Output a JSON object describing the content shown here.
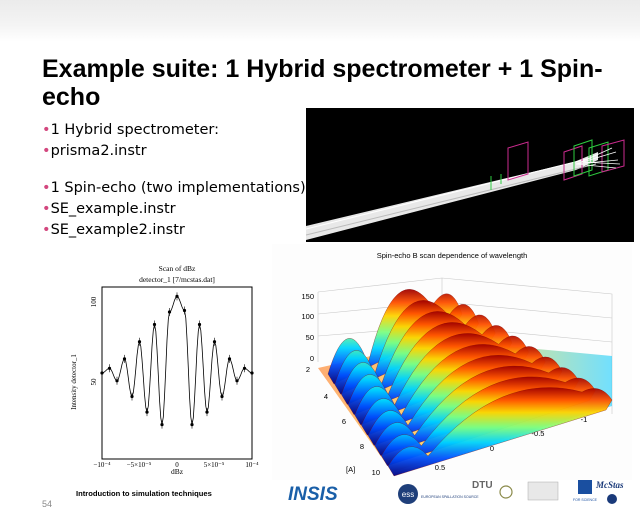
{
  "slide": {
    "title": "Example suite: 1 Hybrid spectrometer + 1 Spin-echo",
    "bullet_marker": "•",
    "bullets": [
      "1 Hybrid spectrometer:",
      "prisma2.instr",
      "1 Spin-echo (two implementations)",
      "SE_example.instr",
      "SE_example2.instr"
    ],
    "footer": "Introduction to simulation techniques",
    "page_number": "54",
    "accent_color": "#d3477e"
  },
  "scan_plot": {
    "title_line1": "Scan of dBz",
    "title_line2": "detector_1 [7/mcstas.dat]",
    "xlabel": "dBz",
    "ylabel": "Intensity detector_1",
    "y_ticks": [
      "50",
      "100"
    ],
    "x_ticks": [
      "−10⁻⁴",
      "−5×10⁻⁵",
      "0",
      "5×10⁻⁵",
      "10⁻⁴"
    ]
  },
  "surface_plot": {
    "title": "Spin-echo B scan dependence of wavelength",
    "z_ticks": [
      "150",
      "100",
      "50",
      "0"
    ],
    "y_ticks": [
      "2",
      "4",
      "6",
      "8",
      "10"
    ],
    "y_unit": "[A]",
    "x_ticks": [
      "0.5",
      "0",
      "-0.5",
      "-1"
    ]
  },
  "logos": {
    "insis": "INSIS",
    "ess": "ess",
    "ess_caption": "EUROPEAN SPALLATION SOURCE",
    "dtu": "DTU",
    "mcstas": "McStas",
    "for_science": "FOR SCIENCE"
  },
  "chart_data": [
    {
      "type": "scatter",
      "title": "Scan of dBz",
      "subtitle": "detector_1 [7/mcstas.dat]",
      "xlabel": "dBz",
      "ylabel": "Intensity detector_1",
      "xlim": [
        -0.0001,
        0.0001
      ],
      "ylim": [
        0,
        110
      ],
      "grid": false,
      "x": [
        -0.0001,
        -9e-05,
        -8e-05,
        -7e-05,
        -6e-05,
        -5e-05,
        -4e-05,
        -3e-05,
        -2e-05,
        -1e-05,
        0,
        1e-05,
        2e-05,
        3e-05,
        4e-05,
        5e-05,
        6e-05,
        7e-05,
        8e-05,
        9e-05,
        0.0001
      ],
      "y": [
        55,
        58,
        50,
        64,
        40,
        75,
        30,
        86,
        22,
        94,
        104,
        95,
        22,
        86,
        30,
        75,
        40,
        64,
        50,
        58,
        55
      ]
    },
    {
      "type": "heatmap",
      "title": "Spin-echo B scan dependence of wavelength",
      "ylabel": "[A]",
      "zlim": [
        0,
        150
      ],
      "ylim": [
        2,
        10
      ],
      "xlim": [
        -1,
        0.5
      ]
    }
  ]
}
